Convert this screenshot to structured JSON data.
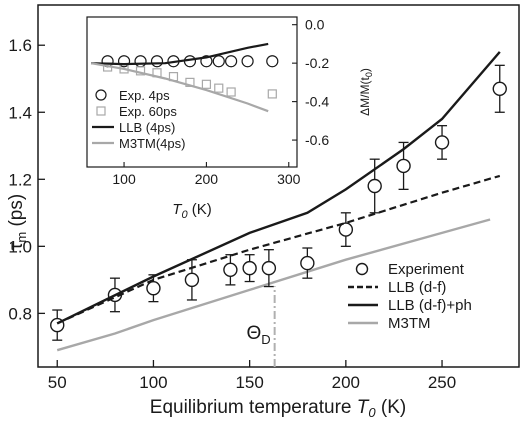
{
  "chart_data": [
    {
      "type": "line",
      "xlabel_main": "Equilibrium temperature ",
      "xlabel_var": "T",
      "xlabel_sub": "0",
      "xlabel_unit": " (K)",
      "ylabel_var": "τ",
      "ylabel_sub": "m",
      "ylabel_unit": " (ps)",
      "xlim": [
        40,
        290
      ],
      "ylim": [
        0.64,
        1.72
      ],
      "x_ticks": [
        "50",
        "100",
        "150",
        "200",
        "250"
      ],
      "x_tick_values": [
        50,
        100,
        150,
        200,
        250
      ],
      "y_ticks": [
        "0.8",
        "1.0",
        "1.2",
        "1.4",
        "1.6"
      ],
      "y_tick_values": [
        0.8,
        1.0,
        1.2,
        1.4,
        1.6
      ],
      "legend_position": "bottom-right",
      "annotation": {
        "base": "Θ",
        "sub": "D",
        "x": 163
      },
      "series": [
        {
          "name": "Experiment",
          "kind": "points",
          "color": "#1a1a1a",
          "x": [
            50,
            80,
            100,
            120,
            140,
            150,
            160,
            180,
            200,
            215,
            230,
            250,
            280
          ],
          "y": [
            0.765,
            0.855,
            0.875,
            0.9,
            0.93,
            0.935,
            0.935,
            0.95,
            1.05,
            1.18,
            1.24,
            1.31,
            1.47
          ],
          "err": [
            0.045,
            0.05,
            0.04,
            0.06,
            0.045,
            0.04,
            0.055,
            0.045,
            0.05,
            0.08,
            0.07,
            0.05,
            0.07
          ]
        },
        {
          "name": "LLB (d-f)",
          "kind": "dashed",
          "color": "#1a1a1a",
          "x": [
            50,
            100,
            150,
            200,
            250,
            280
          ],
          "y": [
            0.77,
            0.9,
            0.99,
            1.07,
            1.16,
            1.21
          ]
        },
        {
          "name": "LLB (d-f)+ph",
          "kind": "solid",
          "color": "#1a1a1a",
          "x": [
            50,
            100,
            150,
            180,
            200,
            230,
            250,
            280
          ],
          "y": [
            0.77,
            0.91,
            1.04,
            1.1,
            1.17,
            1.29,
            1.38,
            1.58
          ]
        },
        {
          "name": "M3TM",
          "kind": "solid",
          "color": "#a8a8a8",
          "x": [
            50,
            80,
            100,
            150,
            200,
            250,
            275
          ],
          "y": [
            0.69,
            0.74,
            0.78,
            0.87,
            0.96,
            1.04,
            1.08
          ]
        }
      ]
    },
    {
      "type": "scatter",
      "inset": true,
      "xlabel_var": "T",
      "xlabel_sub": "0",
      "xlabel_unit": " (K)",
      "ylabel": "ΔM/M(t",
      "ylabel_sub": "0",
      "ylabel_close": ")",
      "xlim": [
        55,
        310
      ],
      "ylim": [
        -0.74,
        0.04
      ],
      "x_ticks": [
        "100",
        "200",
        "300"
      ],
      "x_tick_values": [
        100,
        200,
        300
      ],
      "y_ticks": [
        "0.0",
        "-0.2",
        "-0.4",
        "-0.6"
      ],
      "y_tick_values": [
        0.0,
        -0.2,
        -0.4,
        -0.6
      ],
      "legend_position": "bottom-left",
      "series": [
        {
          "name": "Exp. 4ps",
          "kind": "circles",
          "color": "#1a1a1a",
          "x": [
            80,
            100,
            120,
            140,
            160,
            180,
            200,
            215,
            230,
            250,
            280
          ],
          "y": [
            -0.19,
            -0.19,
            -0.19,
            -0.19,
            -0.19,
            -0.19,
            -0.19,
            -0.19,
            -0.19,
            -0.19,
            -0.19
          ]
        },
        {
          "name": "Exp. 60ps",
          "kind": "squares",
          "color": "#a8a8a8",
          "x": [
            80,
            100,
            120,
            140,
            160,
            180,
            200,
            215,
            230,
            280
          ],
          "y": [
            -0.22,
            -0.23,
            -0.24,
            -0.25,
            -0.27,
            -0.3,
            -0.31,
            -0.33,
            -0.35,
            -0.36
          ]
        },
        {
          "name": "LLB (4ps)",
          "kind": "solid",
          "color": "#1a1a1a",
          "x": [
            60,
            100,
            150,
            200,
            250,
            275
          ],
          "y": [
            -0.2,
            -0.205,
            -0.2,
            -0.17,
            -0.12,
            -0.1
          ]
        },
        {
          "name": "M3TM(4ps)",
          "kind": "solid",
          "color": "#a8a8a8",
          "x": [
            60,
            100,
            150,
            200,
            250,
            275
          ],
          "y": [
            -0.2,
            -0.23,
            -0.28,
            -0.34,
            -0.41,
            -0.45
          ]
        }
      ]
    }
  ]
}
